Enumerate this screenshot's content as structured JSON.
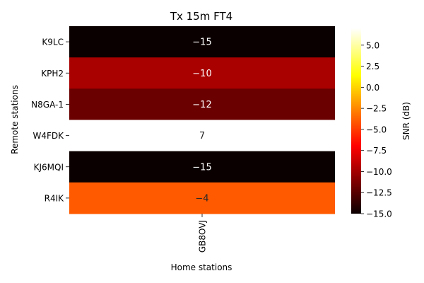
{
  "chart_data": {
    "type": "heatmap",
    "title": "Tx 15m FT4",
    "xlabel": "Home stations",
    "ylabel": "Remote stations",
    "x_categories": [
      "GB8OVJ"
    ],
    "y_categories": [
      "K9LC",
      "KPH2",
      "N8GA-1",
      "W4FDK",
      "KJ6MQI",
      "R4IK"
    ],
    "values": [
      [
        -15
      ],
      [
        -10
      ],
      [
        -12
      ],
      [
        7
      ],
      [
        -15
      ],
      [
        -4
      ]
    ],
    "colorbar": {
      "label": "SNR (dB)",
      "colormap": "hot",
      "range": [
        -15,
        7
      ],
      "ticks": [
        5.0,
        2.5,
        0.0,
        -2.5,
        -5.0,
        -7.5,
        -10.0,
        -12.5,
        -15.0
      ],
      "tick_labels": [
        "5.0",
        "2.5",
        "0.0",
        "−2.5",
        "−5.0",
        "−7.5",
        "−10.0",
        "−12.5",
        "−15.0"
      ]
    },
    "annotation_colors": {
      "light": "#ffffff",
      "dark": "#262626"
    }
  }
}
